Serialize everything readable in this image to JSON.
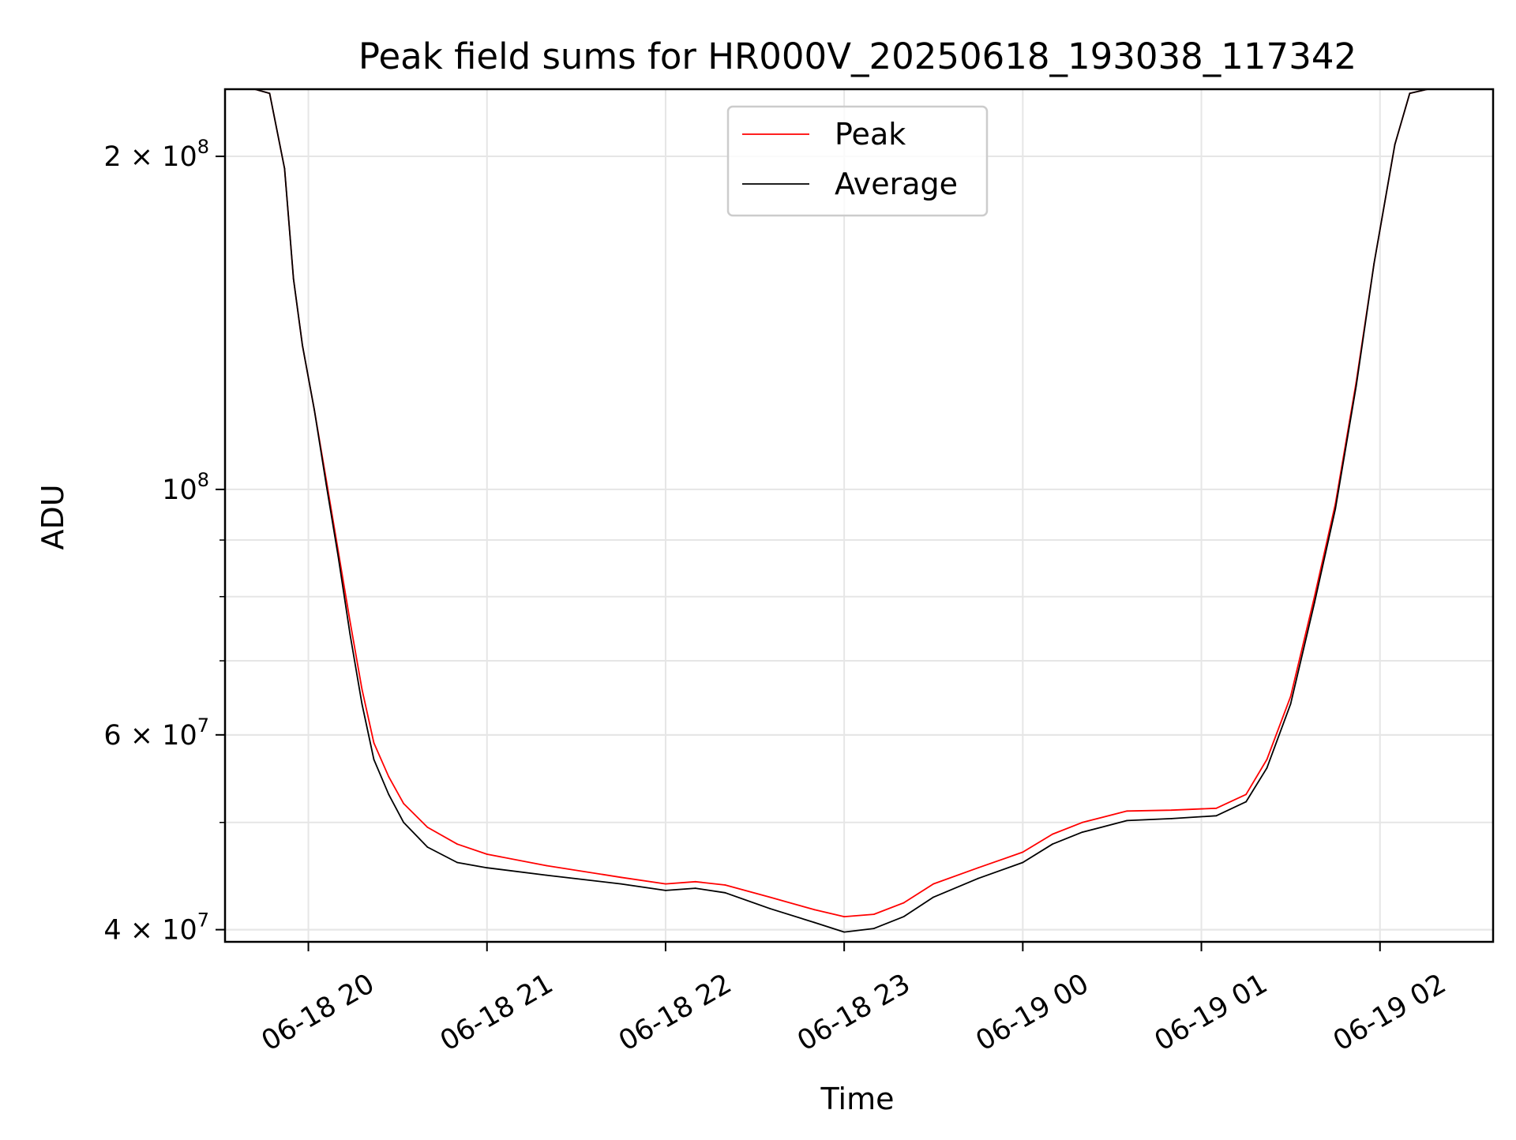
{
  "chart_data": {
    "type": "line",
    "title": "Peak field sums for HR000V_20250618_193038_117342",
    "xlabel": "Time",
    "ylabel": "ADU",
    "yscale": "log",
    "xlim": [
      "2025-06-18 19:32",
      "2025-06-19 02:38"
    ],
    "ylim": [
      39000000,
      230000000
    ],
    "xticks": [
      "06-18 20",
      "06-18 21",
      "06-18 22",
      "06-18 23",
      "06-19 00",
      "06-19 01",
      "06-19 02"
    ],
    "yticks_major": [
      {
        "value": 40000000,
        "label": "4 × 10",
        "exp": "7"
      },
      {
        "value": 60000000,
        "label": "6 × 10",
        "exp": "7"
      },
      {
        "value": 100000000,
        "label": "10",
        "exp": "8"
      },
      {
        "value": 200000000,
        "label": "2 × 10",
        "exp": "8"
      }
    ],
    "grid": true,
    "legend_position": "top-center",
    "series": [
      {
        "name": "Peak",
        "color": "#ff0000",
        "points": [
          [
            "2025-06-18 19:42",
            230000000
          ],
          [
            "2025-06-18 19:47",
            228000000
          ],
          [
            "2025-06-18 19:52",
            195000000
          ],
          [
            "2025-06-18 19:55",
            155000000
          ],
          [
            "2025-06-18 19:58",
            135000000
          ],
          [
            "2025-06-18 20:02",
            118000000
          ],
          [
            "2025-06-18 20:06",
            102000000
          ],
          [
            "2025-06-18 20:10",
            88000000
          ],
          [
            "2025-06-18 20:14",
            76000000
          ],
          [
            "2025-06-18 20:18",
            66000000
          ],
          [
            "2025-06-18 20:22",
            59000000
          ],
          [
            "2025-06-18 20:27",
            55000000
          ],
          [
            "2025-06-18 20:32",
            52000000
          ],
          [
            "2025-06-18 20:40",
            49500000
          ],
          [
            "2025-06-18 20:50",
            47800000
          ],
          [
            "2025-06-18 21:00",
            46800000
          ],
          [
            "2025-06-18 21:20",
            45700000
          ],
          [
            "2025-06-18 21:45",
            44600000
          ],
          [
            "2025-06-18 22:00",
            44000000
          ],
          [
            "2025-06-18 22:10",
            44200000
          ],
          [
            "2025-06-18 22:20",
            43900000
          ],
          [
            "2025-06-18 22:35",
            42800000
          ],
          [
            "2025-06-18 22:50",
            41700000
          ],
          [
            "2025-06-18 23:00",
            41100000
          ],
          [
            "2025-06-18 23:10",
            41300000
          ],
          [
            "2025-06-18 23:20",
            42300000
          ],
          [
            "2025-06-18 23:30",
            44000000
          ],
          [
            "2025-06-18 23:45",
            45500000
          ],
          [
            "2025-06-19 00:00",
            47000000
          ],
          [
            "2025-06-19 00:10",
            48800000
          ],
          [
            "2025-06-19 00:20",
            50000000
          ],
          [
            "2025-06-19 00:35",
            51200000
          ],
          [
            "2025-06-19 00:50",
            51300000
          ],
          [
            "2025-06-19 01:05",
            51500000
          ],
          [
            "2025-06-19 01:15",
            53000000
          ],
          [
            "2025-06-19 01:22",
            57000000
          ],
          [
            "2025-06-19 01:30",
            65000000
          ],
          [
            "2025-06-19 01:38",
            80000000
          ],
          [
            "2025-06-19 01:45",
            97000000
          ],
          [
            "2025-06-19 01:52",
            125000000
          ],
          [
            "2025-06-19 01:58",
            160000000
          ],
          [
            "2025-06-19 02:05",
            205000000
          ],
          [
            "2025-06-19 02:10",
            228000000
          ],
          [
            "2025-06-19 02:16",
            230000000
          ]
        ]
      },
      {
        "name": "Average",
        "color": "#000000",
        "points": [
          [
            "2025-06-18 19:42",
            230000000
          ],
          [
            "2025-06-18 19:47",
            228000000
          ],
          [
            "2025-06-18 19:52",
            195000000
          ],
          [
            "2025-06-18 19:55",
            155000000
          ],
          [
            "2025-06-18 19:58",
            135000000
          ],
          [
            "2025-06-18 20:02",
            118000000
          ],
          [
            "2025-06-18 20:06",
            101000000
          ],
          [
            "2025-06-18 20:10",
            87000000
          ],
          [
            "2025-06-18 20:14",
            74000000
          ],
          [
            "2025-06-18 20:18",
            64000000
          ],
          [
            "2025-06-18 20:22",
            57000000
          ],
          [
            "2025-06-18 20:27",
            53000000
          ],
          [
            "2025-06-18 20:32",
            50000000
          ],
          [
            "2025-06-18 20:40",
            47500000
          ],
          [
            "2025-06-18 20:50",
            46000000
          ],
          [
            "2025-06-18 21:00",
            45500000
          ],
          [
            "2025-06-18 21:20",
            44800000
          ],
          [
            "2025-06-18 21:45",
            44000000
          ],
          [
            "2025-06-18 22:00",
            43400000
          ],
          [
            "2025-06-18 22:10",
            43600000
          ],
          [
            "2025-06-18 22:20",
            43200000
          ],
          [
            "2025-06-18 22:35",
            41800000
          ],
          [
            "2025-06-18 22:50",
            40600000
          ],
          [
            "2025-06-18 23:00",
            39800000
          ],
          [
            "2025-06-18 23:10",
            40100000
          ],
          [
            "2025-06-18 23:20",
            41100000
          ],
          [
            "2025-06-18 23:30",
            42800000
          ],
          [
            "2025-06-18 23:45",
            44500000
          ],
          [
            "2025-06-19 00:00",
            46000000
          ],
          [
            "2025-06-19 00:10",
            47800000
          ],
          [
            "2025-06-19 00:20",
            49000000
          ],
          [
            "2025-06-19 00:35",
            50200000
          ],
          [
            "2025-06-19 00:50",
            50400000
          ],
          [
            "2025-06-19 01:05",
            50700000
          ],
          [
            "2025-06-19 01:15",
            52200000
          ],
          [
            "2025-06-19 01:22",
            56000000
          ],
          [
            "2025-06-19 01:30",
            64000000
          ],
          [
            "2025-06-19 01:38",
            79000000
          ],
          [
            "2025-06-19 01:45",
            96000000
          ],
          [
            "2025-06-19 01:52",
            124000000
          ],
          [
            "2025-06-19 01:58",
            160000000
          ],
          [
            "2025-06-19 02:05",
            205000000
          ],
          [
            "2025-06-19 02:10",
            228000000
          ],
          [
            "2025-06-19 02:16",
            230000000
          ]
        ]
      }
    ]
  }
}
